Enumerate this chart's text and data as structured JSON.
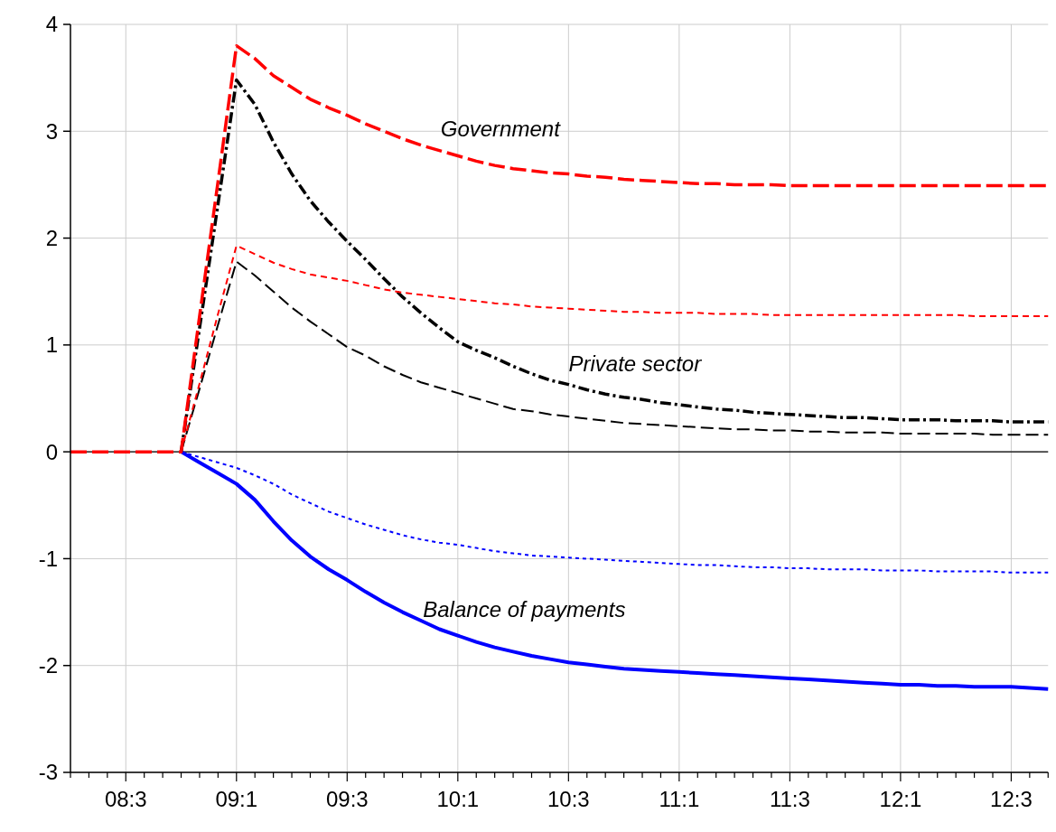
{
  "chart_data": {
    "type": "line",
    "categories": [
      null,
      null,
      null,
      "08:3",
      null,
      null,
      null,
      null,
      null,
      "09:1",
      null,
      null,
      null,
      null,
      null,
      "09:3",
      null,
      null,
      null,
      null,
      null,
      "10:1",
      null,
      null,
      null,
      null,
      null,
      "10:3",
      null,
      null,
      null,
      null,
      null,
      "11:1",
      null,
      null,
      null,
      null,
      null,
      "11:3",
      null,
      null,
      null,
      null,
      null,
      "12:1",
      null,
      null,
      null,
      null,
      null,
      "12:3",
      null,
      null
    ],
    "series": [
      {
        "color": "#ff0000",
        "line_style": "dashed",
        "values": [
          0,
          0,
          0,
          0,
          0,
          0,
          0,
          1.27,
          2.53,
          3.8,
          3.68,
          3.52,
          3.41,
          3.3,
          3.22,
          3.15,
          3.07,
          3.0,
          2.93,
          2.87,
          2.82,
          2.77,
          2.72,
          2.68,
          2.65,
          2.63,
          2.61,
          2.6,
          2.58,
          2.57,
          2.55,
          2.54,
          2.53,
          2.52,
          2.51,
          2.51,
          2.5,
          2.5,
          2.5,
          2.49,
          2.49,
          2.49,
          2.49,
          2.49,
          2.49,
          2.49,
          2.49,
          2.49,
          2.49,
          2.49,
          2.49,
          2.49,
          2.49,
          2.49
        ]
      },
      {
        "color": "#ff0000",
        "line_style": "dashed",
        "values": [
          null,
          null,
          null,
          null,
          null,
          null,
          0,
          0.64,
          1.29,
          1.93,
          1.85,
          1.77,
          1.71,
          1.66,
          1.63,
          1.6,
          1.56,
          1.52,
          1.49,
          1.47,
          1.45,
          1.43,
          1.41,
          1.39,
          1.38,
          1.36,
          1.35,
          1.34,
          1.33,
          1.32,
          1.31,
          1.31,
          1.3,
          1.3,
          1.3,
          1.29,
          1.29,
          1.29,
          1.28,
          1.28,
          1.28,
          1.28,
          1.28,
          1.28,
          1.28,
          1.28,
          1.28,
          1.28,
          1.28,
          1.27,
          1.27,
          1.27,
          1.27,
          1.27
        ]
      },
      {
        "color": "#000000",
        "line_style": "dashed",
        "values": [
          null,
          null,
          null,
          null,
          null,
          null,
          0,
          1.16,
          2.32,
          3.48,
          3.25,
          2.9,
          2.6,
          2.35,
          2.15,
          1.97,
          1.8,
          1.62,
          1.45,
          1.3,
          1.16,
          1.03,
          0.95,
          0.88,
          0.8,
          0.73,
          0.67,
          0.63,
          0.58,
          0.54,
          0.51,
          0.49,
          0.46,
          0.44,
          0.42,
          0.4,
          0.39,
          0.37,
          0.36,
          0.35,
          0.34,
          0.33,
          0.32,
          0.32,
          0.31,
          0.3,
          0.3,
          0.3,
          0.29,
          0.29,
          0.29,
          0.28,
          0.28,
          0.28
        ]
      },
      {
        "color": "#000000",
        "line_style": "dashed",
        "values": [
          null,
          null,
          null,
          null,
          null,
          null,
          0,
          0.59,
          1.19,
          1.78,
          1.65,
          1.5,
          1.35,
          1.22,
          1.1,
          0.98,
          0.9,
          0.8,
          0.72,
          0.65,
          0.6,
          0.55,
          0.5,
          0.45,
          0.4,
          0.38,
          0.35,
          0.33,
          0.31,
          0.29,
          0.27,
          0.26,
          0.25,
          0.24,
          0.23,
          0.22,
          0.21,
          0.21,
          0.2,
          0.2,
          0.19,
          0.19,
          0.18,
          0.18,
          0.18,
          0.17,
          0.17,
          0.17,
          0.17,
          0.17,
          0.16,
          0.16,
          0.16,
          0.16
        ]
      },
      {
        "color": "#0000ff",
        "line_style": "dotted",
        "values": [
          null,
          null,
          null,
          null,
          null,
          null,
          0,
          -0.05,
          -0.1,
          -0.15,
          -0.22,
          -0.3,
          -0.4,
          -0.48,
          -0.56,
          -0.62,
          -0.68,
          -0.73,
          -0.78,
          -0.82,
          -0.85,
          -0.87,
          -0.9,
          -0.93,
          -0.95,
          -0.97,
          -0.98,
          -0.99,
          -1.0,
          -1.01,
          -1.02,
          -1.03,
          -1.04,
          -1.05,
          -1.06,
          -1.06,
          -1.07,
          -1.08,
          -1.08,
          -1.09,
          -1.09,
          -1.1,
          -1.1,
          -1.1,
          -1.11,
          -1.11,
          -1.11,
          -1.12,
          -1.12,
          -1.12,
          -1.12,
          -1.13,
          -1.13,
          -1.13
        ]
      },
      {
        "color": "#0000ff",
        "line_style": "solid",
        "values": [
          null,
          null,
          null,
          null,
          null,
          null,
          0,
          -0.1,
          -0.2,
          -0.3,
          -0.45,
          -0.65,
          -0.83,
          -0.98,
          -1.1,
          -1.2,
          -1.31,
          -1.41,
          -1.5,
          -1.58,
          -1.66,
          -1.72,
          -1.78,
          -1.83,
          -1.87,
          -1.91,
          -1.94,
          -1.97,
          -1.99,
          -2.01,
          -2.03,
          -2.04,
          -2.05,
          -2.06,
          -2.07,
          -2.08,
          -2.09,
          -2.1,
          -2.11,
          -2.12,
          -2.13,
          -2.14,
          -2.15,
          -2.16,
          -2.17,
          -2.18,
          -2.18,
          -2.19,
          -2.19,
          -2.2,
          -2.2,
          -2.2,
          -2.21,
          -2.22
        ]
      }
    ],
    "annotations": [
      "Government",
      "Private sector",
      "Balance of payments"
    ],
    "ylim": [
      -3,
      4
    ],
    "yticks": [
      -3,
      -2,
      -1,
      0,
      1,
      2,
      3,
      4
    ],
    "ref_lines": [
      {
        "axis": "y",
        "value": 0,
        "color": "#000000"
      }
    ],
    "grid": true,
    "marker": "none"
  }
}
